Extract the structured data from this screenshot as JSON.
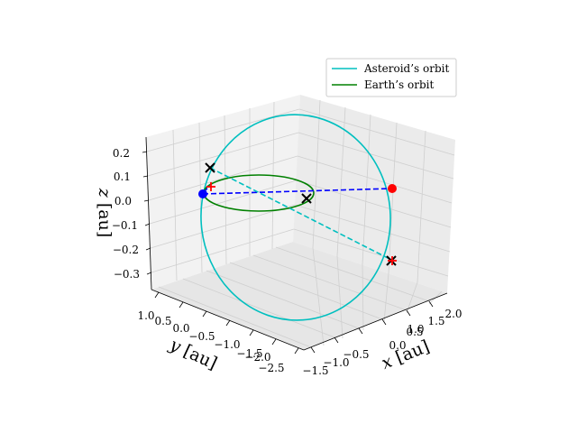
{
  "chart_data": {
    "type": "line",
    "projection": "3d",
    "xlabel": "$x$ [au]",
    "ylabel": "$y$ [au]",
    "zlabel": "$z$ [au]",
    "xlabel_parts": {
      "var": "x",
      "unit": "[au]"
    },
    "ylabel_parts": {
      "var": "y",
      "unit": "[au]"
    },
    "zlabel_parts": {
      "var": "z",
      "unit": "[au]"
    },
    "xticks": [
      "−1.5",
      "−1.0",
      "−0.5",
      "0.0",
      "0.5",
      "1.0",
      "1.5",
      "2.0"
    ],
    "yticks": [
      "1.0",
      "0.5",
      "0.0",
      "−0.5",
      "−1.0",
      "−1.5",
      "−2.0",
      "−2.5"
    ],
    "zticks": [
      "0.2",
      "0.1",
      "0.0",
      "−0.1",
      "−0.2",
      "−0.3"
    ],
    "xlim": [
      -1.6,
      2.1
    ],
    "ylim": [
      -2.6,
      1.1
    ],
    "zlim": [
      -0.35,
      0.25
    ],
    "grid": true,
    "legend": {
      "placement": "upper right",
      "entries": [
        {
          "label": "Asteroid’s orbit",
          "color": "#00bfbf"
        },
        {
          "label": "Earth’s orbit",
          "color": "#008000"
        }
      ]
    },
    "series": [
      {
        "name": "Asteroid’s orbit",
        "color": "#00bfbf",
        "style": "solid"
      },
      {
        "name": "Earth’s orbit",
        "color": "#008000",
        "style": "solid"
      }
    ],
    "markers": [
      {
        "symbol": "circle",
        "color": "#0000ff",
        "x": -0.1,
        "y": 1.0,
        "z": 0.0
      },
      {
        "symbol": "circle",
        "color": "#ff0000",
        "x": 2.0,
        "y": -1.0,
        "z": 0.0
      },
      {
        "symbol": "x",
        "color": "#000000",
        "x": -0.3,
        "y": 0.9,
        "z": 0.12
      },
      {
        "symbol": "x",
        "color": "#000000",
        "x": 0.7,
        "y": -0.7,
        "z": 0.0
      },
      {
        "symbol": "x",
        "color": "#000000",
        "x": 1.7,
        "y": -2.3,
        "z": -0.12
      },
      {
        "symbol": "plus",
        "color": "#ff0000",
        "x": -0.05,
        "y": 0.95,
        "z": 0.02
      },
      {
        "symbol": "plus",
        "color": "#ff0000",
        "x": 1.7,
        "y": -2.3,
        "z": -0.12
      }
    ],
    "connectors": [
      {
        "from": "blue-dot",
        "to": "red-dot",
        "color": "#0000ff",
        "style": "dashed"
      },
      {
        "from": "x-upper-left",
        "to": "x-lower-right",
        "color": "#00bfbf",
        "style": "dashed"
      }
    ]
  }
}
